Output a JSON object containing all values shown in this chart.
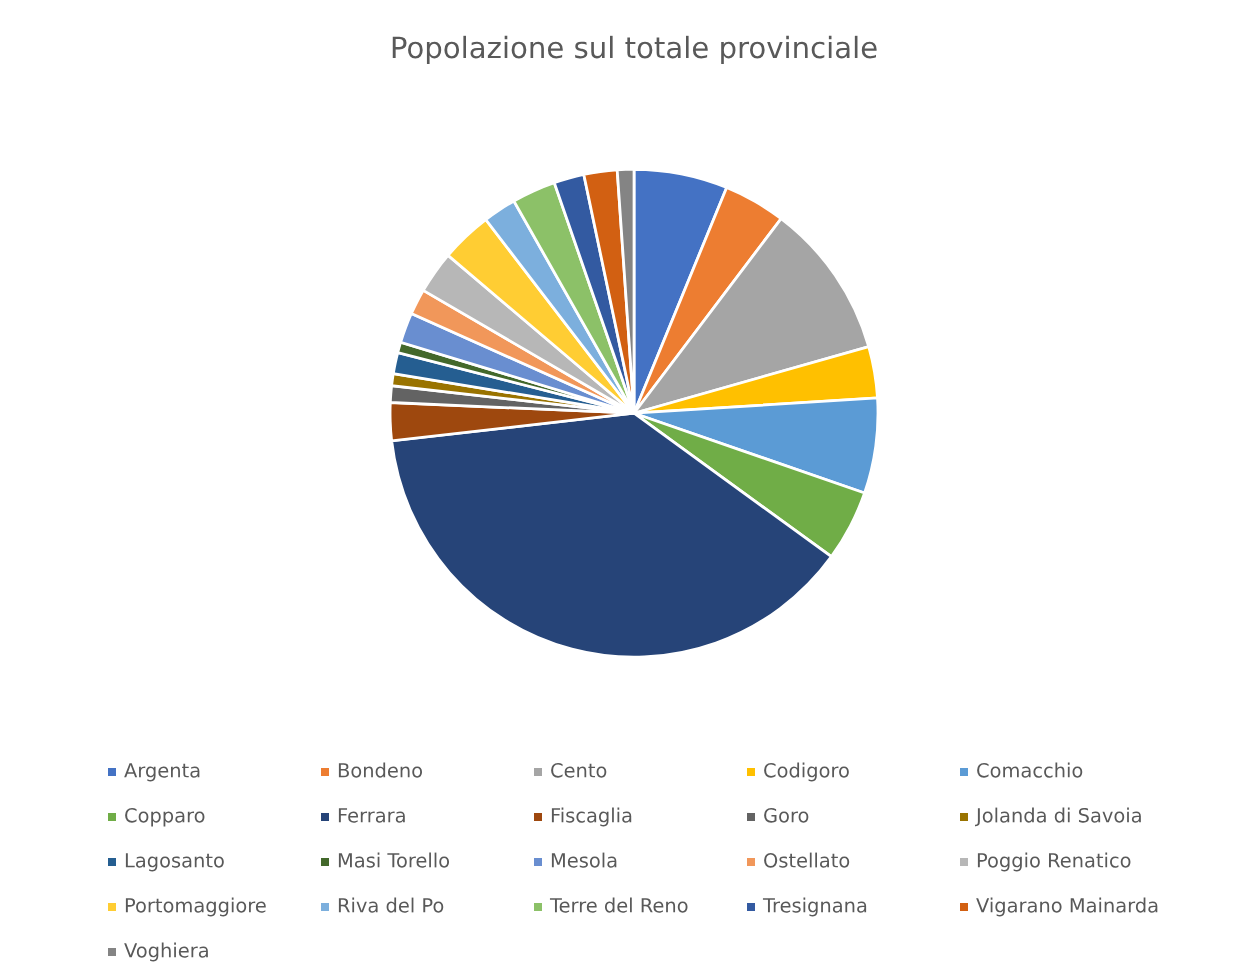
{
  "chart_data": {
    "type": "pie",
    "title": "Popolazione sul totale provinciale",
    "categories": [
      "Argenta",
      "Bondeno",
      "Cento",
      "Codigoro",
      "Comacchio",
      "Copparo",
      "Ferrara",
      "Fiscaglia",
      "Goro",
      "Jolanda di Savoia",
      "Lagosanto",
      "Masi Torello",
      "Mesola",
      "Ostellato",
      "Poggio Renatico",
      "Portomaggiore",
      "Riva del Po",
      "Terre del Reno",
      "Tresignana",
      "Vigarano Mainarda",
      "Voghiera"
    ],
    "values": [
      6.2,
      4.1,
      10.3,
      3.4,
      6.3,
      4.7,
      38.2,
      2.5,
      1.1,
      0.8,
      1.4,
      0.7,
      2.0,
      1.7,
      2.8,
      3.4,
      2.2,
      2.9,
      2.0,
      2.2,
      1.1
    ],
    "colors": [
      "#4472c4",
      "#ed7d31",
      "#a5a5a5",
      "#ffc000",
      "#5b9bd5",
      "#70ad47",
      "#264478",
      "#9e480e",
      "#636363",
      "#997300",
      "#255e91",
      "#43682b",
      "#698ed0",
      "#f1975a",
      "#b7b7b7",
      "#ffcd33",
      "#7cafdd",
      "#8cc168",
      "#335aa1",
      "#d26012",
      "#848484"
    ],
    "legend": "bottom"
  }
}
